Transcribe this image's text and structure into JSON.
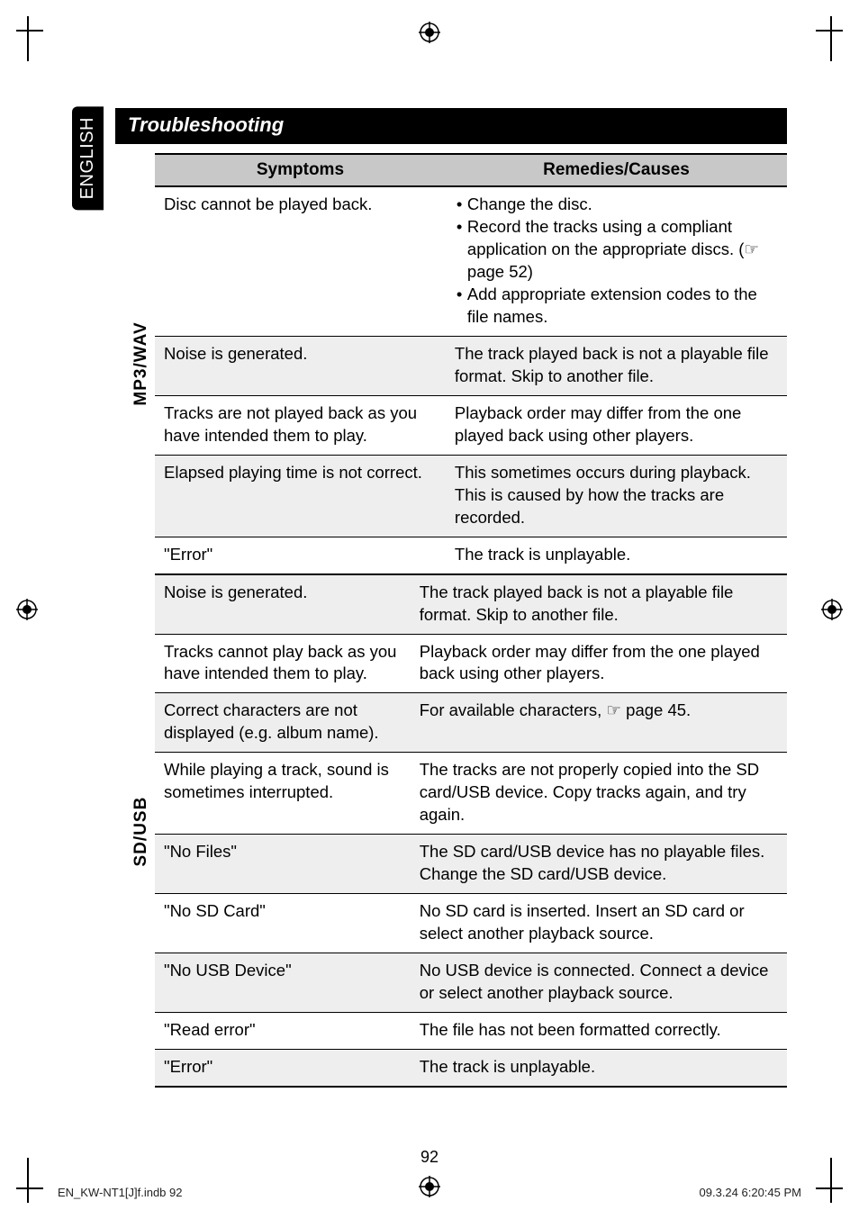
{
  "lang_tab": "ENGLISH",
  "title": "Troubleshooting",
  "headers": {
    "symptoms": "Symptoms",
    "remedies": "Remedies/Causes"
  },
  "sections": [
    {
      "label": "MP3/WAV",
      "rows": [
        {
          "zebra": false,
          "symptom": "Disc cannot be played back.",
          "remedy_list": [
            "Change the disc.",
            "Record the tracks using a compliant application on the appropriate discs. (☞ page 52)",
            "Add appropriate extension codes to the file names."
          ]
        },
        {
          "zebra": true,
          "symptom": "Noise is generated.",
          "remedy": "The track played back is not a playable file format. Skip to another file."
        },
        {
          "zebra": false,
          "symptom": "Tracks are not played back as you have intended them to play.",
          "remedy": "Playback order may differ from the one played back using other players."
        },
        {
          "zebra": true,
          "symptom": "Elapsed playing time is not correct.",
          "remedy": "This sometimes occurs during playback. This is caused by how the tracks are recorded."
        },
        {
          "zebra": false,
          "symptom": "\"Error\"",
          "remedy": "The track is unplayable."
        }
      ]
    },
    {
      "label": "SD/USB",
      "rows": [
        {
          "zebra": true,
          "symptom": "Noise is generated.",
          "remedy": "The track played back is not a playable file format. Skip to another file."
        },
        {
          "zebra": false,
          "symptom": "Tracks cannot play back as you have intended them to play.",
          "remedy": "Playback order may differ from the one played back using other players."
        },
        {
          "zebra": true,
          "symptom": "Correct characters are not displayed (e.g. album name).",
          "remedy": "For available characters, ☞ page 45."
        },
        {
          "zebra": false,
          "symptom": "While playing a track, sound is sometimes interrupted.",
          "remedy": "The tracks are not properly copied into the SD card/USB device. Copy tracks again, and try again."
        },
        {
          "zebra": true,
          "symptom": "\"No Files\"",
          "remedy": "The SD card/USB device has no playable files. Change the SD card/USB device."
        },
        {
          "zebra": false,
          "symptom": "\"No SD Card\"",
          "remedy": "No SD card is inserted. Insert an SD card or select another playback source."
        },
        {
          "zebra": true,
          "symptom": "\"No USB Device\"",
          "remedy": "No USB device is connected. Connect a device or select another playback source."
        },
        {
          "zebra": false,
          "symptom": "\"Read error\"",
          "remedy": "The file has not been formatted correctly."
        },
        {
          "zebra": true,
          "symptom": "\"Error\"",
          "remedy": "The track is unplayable."
        }
      ]
    }
  ],
  "page_number": "92",
  "footer_left": "EN_KW-NT1[J]f.indb   92",
  "footer_right": "09.3.24   6:20:45 PM"
}
